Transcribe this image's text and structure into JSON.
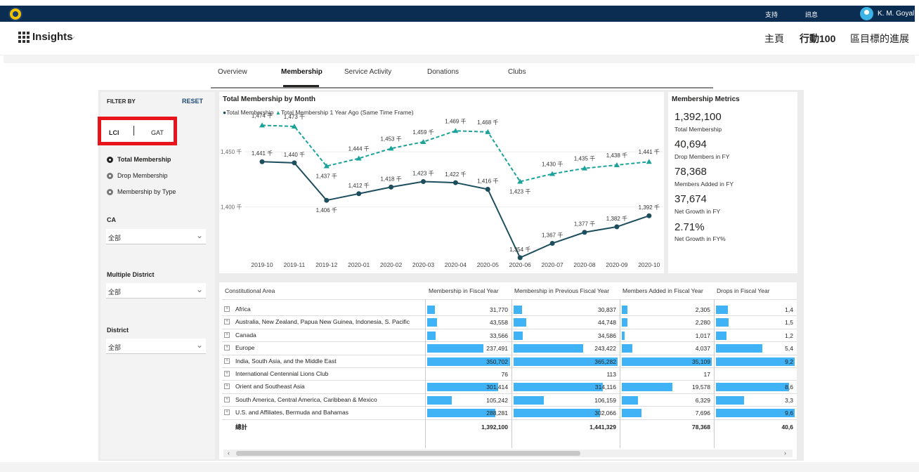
{
  "topbar": {
    "link_support": "支持",
    "link_news": "訊息",
    "user_name": "K. M. Goyal"
  },
  "appbar": {
    "title": "Insights",
    "nav": [
      "主頁",
      "行動100",
      "區目標的進展"
    ]
  },
  "tabs": [
    "Overview",
    "Membership",
    "Service Activity",
    "Donations",
    "Clubs"
  ],
  "filter": {
    "title": "FILTER BY",
    "reset": "RESET",
    "seg_left": "LCI",
    "seg_right": "GAT",
    "radios": [
      "Total Membership",
      "Drop Membership",
      "Membership by Type"
    ],
    "ca_label": "CA",
    "ca_value": "全部",
    "md_label": "Multiple District",
    "md_value": "全部",
    "district_label": "District",
    "district_value": "全部"
  },
  "chart_title": "Total Membership by Month",
  "chart_data": {
    "type": "line",
    "title": "Total Membership by Month",
    "categories": [
      "2019-10",
      "2019-11",
      "2019-12",
      "2020-01",
      "2020-02",
      "2020-03",
      "2020-04",
      "2020-05",
      "2020-06",
      "2020-07",
      "2020-08",
      "2020-09",
      "2020-10"
    ],
    "series": [
      {
        "name": "Total Membership",
        "color": "#1d4e5e",
        "values": [
          1441,
          1440,
          1406,
          1412,
          1418,
          1423,
          1422,
          1416,
          1354,
          1367,
          1377,
          1382,
          1392
        ],
        "labels": [
          "1,441 千",
          "1,440 千",
          "1,406 千",
          "1,412 千",
          "1,418 千",
          "1,423 千",
          "1,422 千",
          "1,416 千",
          "1,354 千",
          "1,367 千",
          "1,377 千",
          "1,382 千",
          "1,392 千"
        ]
      },
      {
        "name": "Total Membership 1 Year Ago (Same Time Frame)",
        "color": "#1ba39a",
        "values": [
          1474,
          1473,
          1437,
          1444,
          1453,
          1459,
          1469,
          1468,
          1423,
          1430,
          1435,
          1438,
          1441
        ],
        "labels": [
          "1,474 千",
          "1,473 千",
          "1,437 千",
          "1,444 千",
          "1,453 千",
          "1,459 千",
          "1,469 千",
          "1,468 千",
          "1,423 千",
          "1,430 千",
          "1,435 千",
          "1,438 千",
          "1,441 千"
        ]
      }
    ],
    "y_ticks": [
      {
        "value": 1450,
        "label": "1,450 千"
      },
      {
        "value": 1400,
        "label": "1,400 千"
      }
    ],
    "ylim": [
      1345,
      1480
    ],
    "legend": "top-left"
  },
  "metrics": {
    "title": "Membership Metrics",
    "items": [
      {
        "value": "1,392,100",
        "label": "Total Membership"
      },
      {
        "value": "40,694",
        "label": "Drop Members in FY"
      },
      {
        "value": "78,368",
        "label": "Members Added in FY"
      },
      {
        "value": "37,674",
        "label": "Net Growth in FY"
      },
      {
        "value": "2.71%",
        "label": "Net Growth in FY%"
      }
    ]
  },
  "table": {
    "columns": [
      "Constitutional Area",
      "Membership in Fiscal Year",
      "Membership in Previous Fiscal Year",
      "Members Added in Fiscal Year",
      "Drops in Fiscal Year"
    ],
    "rows": [
      {
        "area": "Africa",
        "values": [
          "31,770",
          "30,837",
          "2,305",
          "1,4"
        ],
        "fracs": [
          0.09,
          0.08,
          0.06,
          0.15
        ]
      },
      {
        "area": "Australia, New Zealand, Papua New Guinea, Indonesia, S. Pacific",
        "values": [
          "43,558",
          "44,748",
          "2,280",
          "1,5"
        ],
        "fracs": [
          0.12,
          0.12,
          0.06,
          0.16
        ]
      },
      {
        "area": "Canada",
        "values": [
          "33,566",
          "34,586",
          "1,017",
          "1,2"
        ],
        "fracs": [
          0.1,
          0.09,
          0.03,
          0.13
        ]
      },
      {
        "area": "Europe",
        "values": [
          "237,491",
          "243,422",
          "4,037",
          "5,4"
        ],
        "fracs": [
          0.68,
          0.67,
          0.12,
          0.59
        ]
      },
      {
        "area": "India, South Asia, and the Middle East",
        "values": [
          "350,702",
          "365,282",
          "35,109",
          "9,2"
        ],
        "fracs": [
          1.0,
          1.0,
          1.0,
          1.0
        ]
      },
      {
        "area": "International Centennial Lions Club",
        "values": [
          "76",
          "113",
          "17",
          ""
        ],
        "fracs": [
          0,
          0,
          0,
          0
        ]
      },
      {
        "area": "Orient and Southeast Asia",
        "values": [
          "301,414",
          "314,116",
          "19,578",
          "8,6"
        ],
        "fracs": [
          0.86,
          0.86,
          0.56,
          0.93
        ]
      },
      {
        "area": "South America, Central America, Caribbean & Mexico",
        "values": [
          "105,242",
          "106,159",
          "6,329",
          "3,3"
        ],
        "fracs": [
          0.3,
          0.29,
          0.18,
          0.36
        ]
      },
      {
        "area": "U.S. and Affiliates, Bermuda and Bahamas",
        "values": [
          "288,281",
          "302,066",
          "7,696",
          "9,6"
        ],
        "fracs": [
          0.82,
          0.83,
          0.22,
          1.0
        ]
      }
    ],
    "total_label": "總計",
    "totals": [
      "1,392,100",
      "1,441,329",
      "78,368",
      "40,6"
    ]
  }
}
